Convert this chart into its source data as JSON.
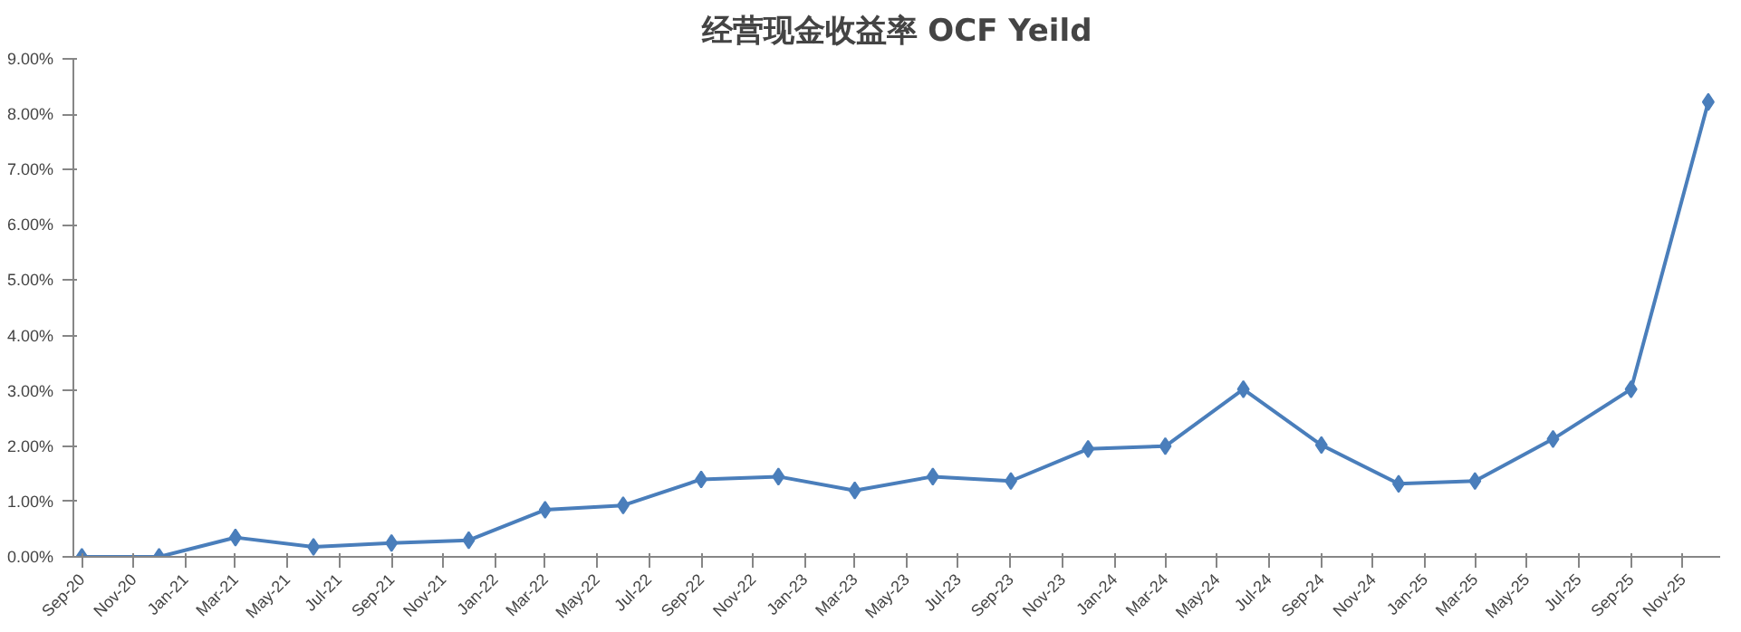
{
  "chart_data": {
    "type": "line",
    "title": "经营现金收益率 OCF Yeild",
    "x": [
      "2020-09",
      "2020-12",
      "2021-03",
      "2021-06",
      "2021-09",
      "2021-12",
      "2022-03",
      "2022-06",
      "2022-09",
      "2022-12",
      "2023-03",
      "2023-06",
      "2023-09",
      "2023-12",
      "2024-03",
      "2024-06",
      "2024-09",
      "2024-12",
      "2025-03",
      "2025-06",
      "2025-09",
      "2025-12"
    ],
    "series": [
      {
        "color": "#4a7ebb",
        "values": [
          0,
          0,
          0.35,
          0.18,
          0.25,
          0.3,
          0.85,
          0.93,
          1.4,
          1.45,
          1.2,
          1.45,
          1.37,
          1.95,
          2.0,
          3.03,
          2.02,
          1.32,
          1.37,
          2.13,
          3.03,
          8.22
        ]
      }
    ],
    "marker": "diamond",
    "line_style": "solid",
    "grid": false,
    "xlim": [
      "2020-08-22",
      "2025-12-15"
    ],
    "xticks": [
      {
        "value": "2020-09",
        "label": "Sep-20"
      },
      {
        "value": "2020-11",
        "label": "Nov-20"
      },
      {
        "value": "2021-01",
        "label": "Jan-21"
      },
      {
        "value": "2021-03",
        "label": "Mar-21"
      },
      {
        "value": "2021-05",
        "label": "May-21"
      },
      {
        "value": "2021-07",
        "label": "Jul-21"
      },
      {
        "value": "2021-09",
        "label": "Sep-21"
      },
      {
        "value": "2021-11",
        "label": "Nov-21"
      },
      {
        "value": "2022-01",
        "label": "Jan-22"
      },
      {
        "value": "2022-03",
        "label": "Mar-22"
      },
      {
        "value": "2022-05",
        "label": "May-22"
      },
      {
        "value": "2022-07",
        "label": "Jul-22"
      },
      {
        "value": "2022-09",
        "label": "Sep-22"
      },
      {
        "value": "2022-11",
        "label": "Nov-22"
      },
      {
        "value": "2023-01",
        "label": "Jan-23"
      },
      {
        "value": "2023-03",
        "label": "Mar-23"
      },
      {
        "value": "2023-05",
        "label": "May-23"
      },
      {
        "value": "2023-07",
        "label": "Jul-23"
      },
      {
        "value": "2023-09",
        "label": "Sep-23"
      },
      {
        "value": "2023-11",
        "label": "Nov-23"
      },
      {
        "value": "2024-01",
        "label": "Jan-24"
      },
      {
        "value": "2024-03",
        "label": "Mar-24"
      },
      {
        "value": "2024-05",
        "label": "May-24"
      },
      {
        "value": "2024-07",
        "label": "Jul-24"
      },
      {
        "value": "2024-09",
        "label": "Sep-24"
      },
      {
        "value": "2024-11",
        "label": "Nov-24"
      },
      {
        "value": "2025-01",
        "label": "Jan-25"
      },
      {
        "value": "2025-03",
        "label": "Mar-25"
      },
      {
        "value": "2025-05",
        "label": "May-25"
      },
      {
        "value": "2025-07",
        "label": "Jul-25"
      },
      {
        "value": "2025-09",
        "label": "Sep-25"
      },
      {
        "value": "2025-11",
        "label": "Nov-25"
      }
    ],
    "ylim": [
      0,
      9
    ],
    "yticks": [
      {
        "value": 0,
        "label": "0.00%"
      },
      {
        "value": 1,
        "label": "1.00%"
      },
      {
        "value": 2,
        "label": "2.00%"
      },
      {
        "value": 3,
        "label": "3.00%"
      },
      {
        "value": 4,
        "label": "4.00%"
      },
      {
        "value": 5,
        "label": "5.00%"
      },
      {
        "value": 6,
        "label": "6.00%"
      },
      {
        "value": 7,
        "label": "7.00%"
      },
      {
        "value": 8,
        "label": "8.00%"
      },
      {
        "value": 9,
        "label": "9.00%"
      }
    ]
  }
}
